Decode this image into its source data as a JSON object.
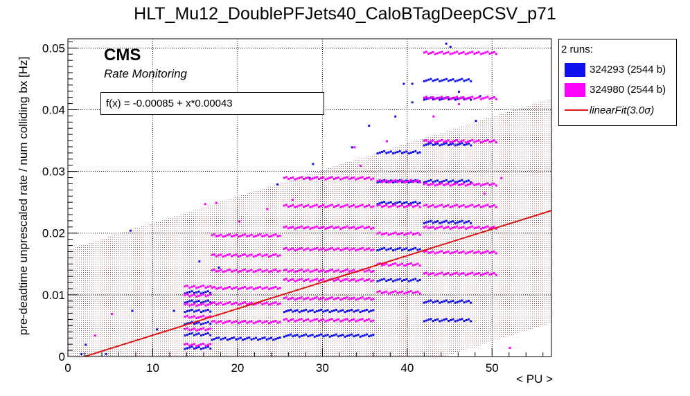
{
  "chart_data": {
    "type": "scatter",
    "title": "HLT_Mu12_DoublePFJets40_CaloBTagDeepCSV_p71",
    "xlabel": "< PU >",
    "ylabel": "pre-deadtime unprescaled rate / num colliding bx [Hz]",
    "xlim": [
      0,
      57
    ],
    "ylim": [
      0,
      0.0515
    ],
    "x_ticks": [
      0,
      10,
      20,
      30,
      40,
      50
    ],
    "x_tick_labels": [
      "0",
      "10",
      "20",
      "30",
      "40",
      "50"
    ],
    "y_ticks": [
      0,
      0.01,
      0.02,
      0.03,
      0.04,
      0.05
    ],
    "y_tick_labels": [
      "0",
      "0.01",
      "0.02",
      "0.03",
      "0.04",
      "0.05"
    ],
    "grid": true,
    "legend_position": "top-right outside",
    "legend_title": "2 runs:",
    "series": [
      {
        "name": "324293 (2544 b)",
        "color": "#1010ee",
        "bands": [
          {
            "x0": 13.8,
            "x1": 16.8,
            "y": 0.0014
          },
          {
            "x0": 13.8,
            "x1": 16.8,
            "y": 0.0036
          },
          {
            "x0": 13.8,
            "x1": 16.8,
            "y": 0.0054
          },
          {
            "x0": 13.8,
            "x1": 16.8,
            "y": 0.0074
          },
          {
            "x0": 13.8,
            "x1": 16.8,
            "y": 0.0089
          },
          {
            "x0": 13.8,
            "x1": 16.8,
            "y": 0.0104
          },
          {
            "x0": 17.0,
            "x1": 25.0,
            "y": 0.0029
          },
          {
            "x0": 25.5,
            "x1": 36.0,
            "y": 0.0034
          },
          {
            "x0": 25.5,
            "x1": 36.0,
            "y": 0.0074
          },
          {
            "x0": 36.5,
            "x1": 41.5,
            "y": 0.0124
          },
          {
            "x0": 36.5,
            "x1": 41.5,
            "y": 0.0174
          },
          {
            "x0": 36.5,
            "x1": 41.5,
            "y": 0.0249
          },
          {
            "x0": 36.5,
            "x1": 41.5,
            "y": 0.0284
          },
          {
            "x0": 36.5,
            "x1": 41.5,
            "y": 0.0331
          },
          {
            "x0": 42.0,
            "x1": 47.5,
            "y": 0.0218
          },
          {
            "x0": 42.0,
            "x1": 47.5,
            "y": 0.0284
          },
          {
            "x0": 42.0,
            "x1": 47.5,
            "y": 0.0344
          },
          {
            "x0": 42.0,
            "x1": 47.5,
            "y": 0.0418
          },
          {
            "x0": 42.0,
            "x1": 47.5,
            "y": 0.0448
          },
          {
            "x0": 42.0,
            "x1": 47.5,
            "y": 0.0089
          },
          {
            "x0": 42.0,
            "x1": 47.5,
            "y": 0.0059
          }
        ],
        "points": [
          {
            "x": 1.6,
            "y": 0.0004
          },
          {
            "x": 2.1,
            "y": 0.0019
          },
          {
            "x": 4.5,
            "y": 0.0004
          },
          {
            "x": 7.4,
            "y": 0.0204
          },
          {
            "x": 7.6,
            "y": 0.0074
          },
          {
            "x": 10.5,
            "y": 0.0044
          },
          {
            "x": 12.5,
            "y": 0.0074
          },
          {
            "x": 15.5,
            "y": 0.0154
          },
          {
            "x": 17.8,
            "y": 0.0144
          },
          {
            "x": 24.7,
            "y": 0.0279
          },
          {
            "x": 28.5,
            "y": 0.0289
          },
          {
            "x": 28.9,
            "y": 0.0312
          },
          {
            "x": 33.5,
            "y": 0.0339
          },
          {
            "x": 35.5,
            "y": 0.0374
          },
          {
            "x": 38.6,
            "y": 0.0389
          },
          {
            "x": 40.6,
            "y": 0.0412
          },
          {
            "x": 39.6,
            "y": 0.0442
          },
          {
            "x": 40.6,
            "y": 0.0442
          },
          {
            "x": 44.6,
            "y": 0.0507
          },
          {
            "x": 45.1,
            "y": 0.0502
          },
          {
            "x": 48.1,
            "y": 0.0382
          },
          {
            "x": 46.1,
            "y": 0.0429
          },
          {
            "x": 48.6,
            "y": 0.0422
          }
        ]
      },
      {
        "name": "324980 (2544 b)",
        "color": "#ff00ff",
        "bands": [
          {
            "x0": 13.8,
            "x1": 16.8,
            "y": 0.0019
          },
          {
            "x0": 13.8,
            "x1": 16.8,
            "y": 0.0044
          },
          {
            "x0": 13.8,
            "x1": 16.8,
            "y": 0.0064
          },
          {
            "x0": 13.8,
            "x1": 16.8,
            "y": 0.0084
          },
          {
            "x0": 13.8,
            "x1": 16.8,
            "y": 0.0099
          },
          {
            "x0": 13.8,
            "x1": 16.8,
            "y": 0.0113
          },
          {
            "x0": 17.0,
            "x1": 25.0,
            "y": 0.0056
          },
          {
            "x0": 17.0,
            "x1": 25.0,
            "y": 0.0086
          },
          {
            "x0": 17.0,
            "x1": 25.0,
            "y": 0.0111
          },
          {
            "x0": 17.0,
            "x1": 25.0,
            "y": 0.0139
          },
          {
            "x0": 17.0,
            "x1": 25.0,
            "y": 0.0164
          },
          {
            "x0": 17.0,
            "x1": 25.0,
            "y": 0.0196
          },
          {
            "x0": 25.5,
            "x1": 36.0,
            "y": 0.0059
          },
          {
            "x0": 25.5,
            "x1": 36.0,
            "y": 0.0094
          },
          {
            "x0": 25.5,
            "x1": 36.0,
            "y": 0.0124
          },
          {
            "x0": 25.5,
            "x1": 36.0,
            "y": 0.0139
          },
          {
            "x0": 25.5,
            "x1": 36.0,
            "y": 0.0174
          },
          {
            "x0": 25.5,
            "x1": 36.0,
            "y": 0.0209
          },
          {
            "x0": 25.5,
            "x1": 36.0,
            "y": 0.0244
          },
          {
            "x0": 25.5,
            "x1": 36.0,
            "y": 0.0289
          },
          {
            "x0": 36.5,
            "x1": 41.5,
            "y": 0.0104
          },
          {
            "x0": 36.5,
            "x1": 41.5,
            "y": 0.0149
          },
          {
            "x0": 36.5,
            "x1": 41.5,
            "y": 0.0199
          },
          {
            "x0": 36.5,
            "x1": 41.5,
            "y": 0.0244
          },
          {
            "x0": 36.5,
            "x1": 41.5,
            "y": 0.0284
          },
          {
            "x0": 42.0,
            "x1": 50.5,
            "y": 0.0134
          },
          {
            "x0": 42.0,
            "x1": 50.5,
            "y": 0.0169
          },
          {
            "x0": 42.0,
            "x1": 50.5,
            "y": 0.0209
          },
          {
            "x0": 42.0,
            "x1": 50.5,
            "y": 0.0244
          },
          {
            "x0": 42.0,
            "x1": 50.5,
            "y": 0.0279
          },
          {
            "x0": 42.0,
            "x1": 50.5,
            "y": 0.0349
          },
          {
            "x0": 42.0,
            "x1": 50.5,
            "y": 0.0419
          },
          {
            "x0": 42.0,
            "x1": 50.5,
            "y": 0.0492
          }
        ],
        "points": [
          {
            "x": 3.2,
            "y": 0.0034
          },
          {
            "x": 5.2,
            "y": 0.0069
          },
          {
            "x": 16.2,
            "y": 0.0247
          },
          {
            "x": 17.5,
            "y": 0.0249
          },
          {
            "x": 20.2,
            "y": 0.0219
          },
          {
            "x": 23.5,
            "y": 0.0239
          },
          {
            "x": 26.5,
            "y": 0.0254
          },
          {
            "x": 33.8,
            "y": 0.0339
          },
          {
            "x": 34.5,
            "y": 0.0309
          },
          {
            "x": 37.6,
            "y": 0.0349
          },
          {
            "x": 43.1,
            "y": 0.0389
          },
          {
            "x": 46.1,
            "y": 0.0409
          },
          {
            "x": 49.1,
            "y": 0.0264
          },
          {
            "x": 51.1,
            "y": 0.0289
          },
          {
            "x": 52.1,
            "y": 0.0014
          }
        ]
      }
    ],
    "fit": {
      "name": "linearFit(3.0σ)",
      "label": "f(x) = -0.00085 + x*0.00043",
      "intercept": -0.00085,
      "slope": 0.00043,
      "x_start": 1.98,
      "sigma_band": 0.0182,
      "color": "#e01010",
      "band_color": "#b07070"
    }
  },
  "annotations": {
    "cms": "CMS",
    "rate_monitoring": "Rate Monitoring"
  }
}
